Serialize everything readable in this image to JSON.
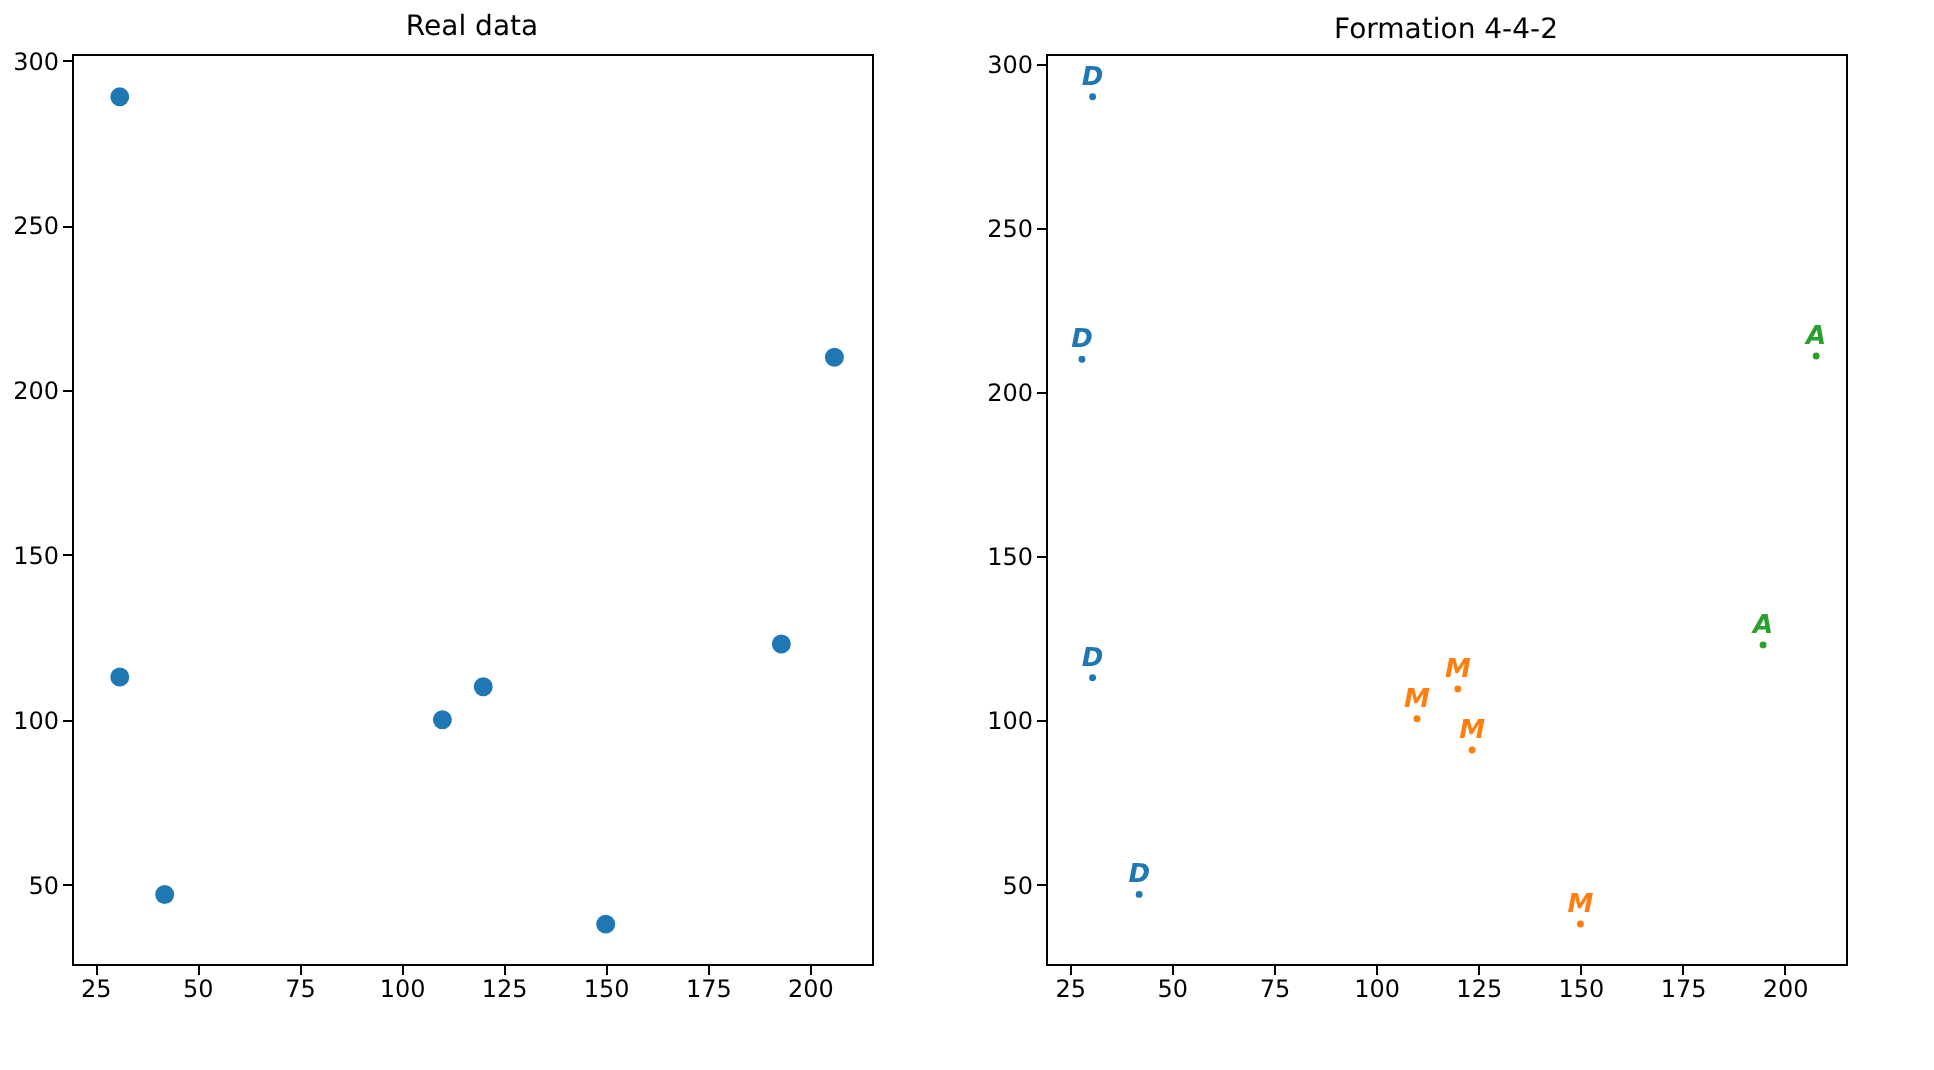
{
  "chart_data": [
    {
      "type": "scatter",
      "title": "Real data",
      "marker": "circle",
      "xlim": [
        19.3,
        215.2
      ],
      "ylim": [
        25.9,
        302
      ],
      "xticks": [
        25,
        50,
        75,
        100,
        125,
        150,
        175,
        200
      ],
      "yticks": [
        50,
        100,
        150,
        200,
        250,
        300
      ],
      "series": [
        {
          "color": "#1f77b4",
          "x": [
            31,
            31,
            42,
            110,
            120,
            150,
            193,
            206
          ],
          "values": [
            289,
            113,
            47,
            100,
            110,
            38,
            123,
            210
          ]
        }
      ]
    },
    {
      "type": "scatter",
      "title": "Formation 4-4-2",
      "xlim": [
        19.2,
        215
      ],
      "ylim": [
        25.8,
        303
      ],
      "xticks": [
        25,
        50,
        75,
        100,
        125,
        150,
        175,
        200
      ],
      "yticks": [
        50,
        100,
        150,
        200,
        250,
        300
      ],
      "series": [
        {
          "name": "D",
          "color": "#1f77b4",
          "x": [
            30.6,
            28,
            30.6,
            42
          ],
          "values": [
            290,
            210,
            113,
            47
          ]
        },
        {
          "name": "M",
          "color": "#ff7f0e",
          "x": [
            110,
            120,
            123.5,
            150
          ],
          "values": [
            100.5,
            109.6,
            91,
            38
          ]
        },
        {
          "name": "A",
          "color": "#2ca02c",
          "x": [
            207.7,
            194.7
          ],
          "values": [
            211,
            123
          ]
        }
      ]
    }
  ]
}
